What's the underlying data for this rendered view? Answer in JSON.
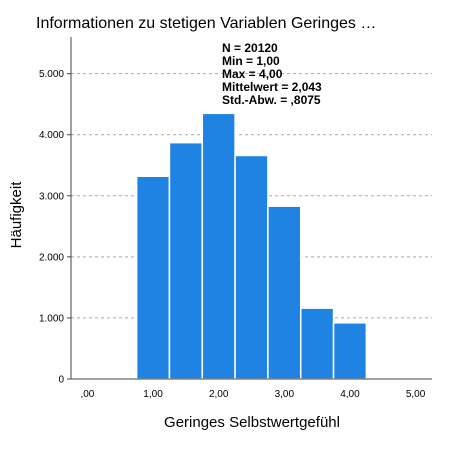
{
  "chart_data": {
    "type": "bar",
    "title": "Informationen zu stetigen Variablen Geringes …",
    "xlabel": "Geringes Selbstwertgefühl",
    "ylabel": "Häufigkeit",
    "x_ticks": [
      ",00",
      "1,00",
      "2,00",
      "3,00",
      "4,00",
      "5,00"
    ],
    "x_tick_values": [
      0,
      1,
      2,
      3,
      4,
      5
    ],
    "y_ticks": [
      "0",
      "1.000",
      "2.000",
      "3.000",
      "4.000",
      "5.000"
    ],
    "y_tick_values": [
      0,
      1000,
      2000,
      3000,
      4000,
      5000
    ],
    "xlim": [
      -0.25,
      5.25
    ],
    "ylim": [
      0,
      5600
    ],
    "bin_width": 0.5,
    "bins": [
      {
        "start": 0.75,
        "end": 1.25,
        "value": 3320
      },
      {
        "start": 1.25,
        "end": 1.75,
        "value": 3870
      },
      {
        "start": 1.75,
        "end": 2.25,
        "value": 4350
      },
      {
        "start": 2.25,
        "end": 2.75,
        "value": 3660
      },
      {
        "start": 2.75,
        "end": 3.25,
        "value": 2830
      },
      {
        "start": 3.25,
        "end": 3.75,
        "value": 1160
      },
      {
        "start": 3.75,
        "end": 4.25,
        "value": 920
      }
    ],
    "bar_color": "#1f83e3",
    "grid": "horizontal dashed",
    "stats": [
      "N = 20120",
      "Min = 1,00",
      "Max = 4,00",
      "Mittelwert = 2,043",
      "Std.-Abw. = ,8075"
    ]
  }
}
